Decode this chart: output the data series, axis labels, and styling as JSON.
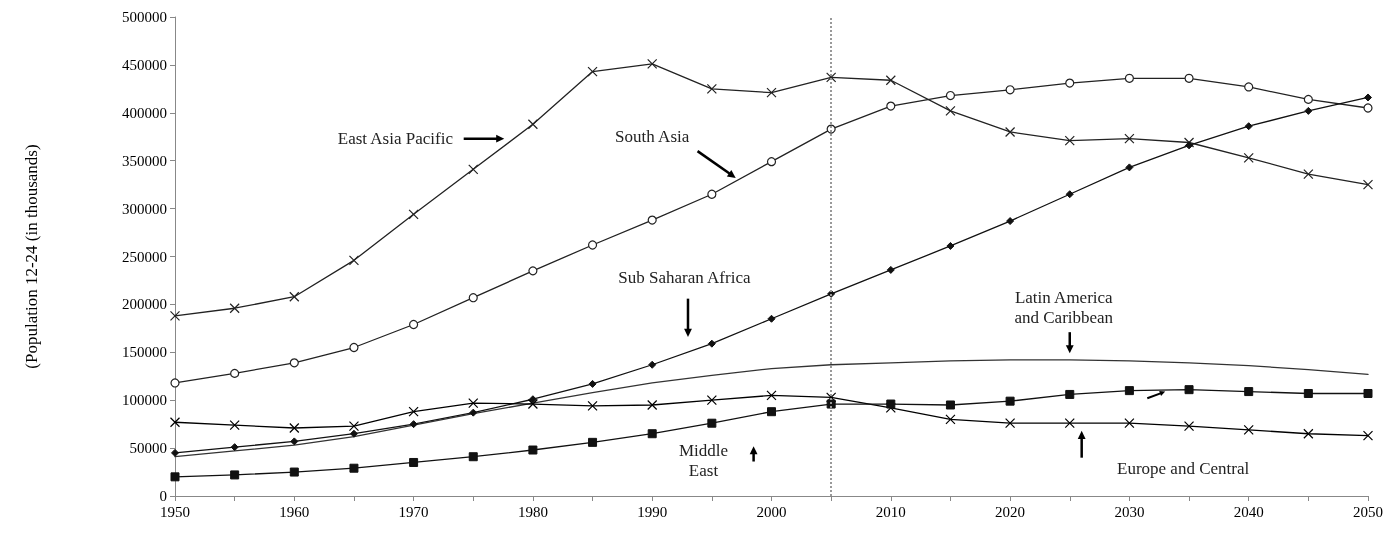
{
  "chart_data": {
    "type": "line",
    "ylabel": "(Population 12-24 (in thousands)",
    "x": [
      1950,
      1955,
      1960,
      1965,
      1970,
      1975,
      1980,
      1985,
      1990,
      1995,
      2000,
      2005,
      2010,
      2015,
      2020,
      2025,
      2030,
      2035,
      2040,
      2045,
      2050
    ],
    "series": [
      {
        "color": "#222222",
        "marker": "cross",
        "values": [
          188000,
          196000,
          208000,
          246000,
          294000,
          341000,
          388000,
          443000,
          451000,
          425000,
          421000,
          437000,
          434000,
          402000,
          380000,
          371000,
          373000,
          369000,
          353000,
          336000,
          325000
        ]
      },
      {
        "color": "#222222",
        "marker": "circle",
        "values": [
          118000,
          128000,
          139000,
          155000,
          179000,
          207000,
          235000,
          262000,
          288000,
          315000,
          349000,
          383000,
          407000,
          418000,
          424000,
          431000,
          436000,
          436000,
          427000,
          414000,
          405000
        ]
      },
      {
        "color": "#111111",
        "marker": "diamond",
        "values": [
          45000,
          51000,
          57000,
          65000,
          75000,
          87000,
          101000,
          117000,
          137000,
          159000,
          185000,
          211000,
          236000,
          261000,
          287000,
          315000,
          343000,
          366000,
          386000,
          402000,
          416000
        ]
      },
      {
        "color": "#333333",
        "marker": "none",
        "values": [
          41000,
          47000,
          53000,
          62000,
          74000,
          86000,
          97000,
          108000,
          118000,
          126000,
          133000,
          137000,
          139000,
          141000,
          142000,
          142000,
          141000,
          139000,
          136000,
          132000,
          127000
        ]
      },
      {
        "color": "#000000",
        "marker": "cross",
        "values": [
          77000,
          74000,
          71000,
          73000,
          88000,
          97000,
          96000,
          94000,
          95000,
          100000,
          105000,
          103000,
          92000,
          80000,
          76000,
          76000,
          76000,
          73000,
          69000,
          65000,
          63000
        ]
      },
      {
        "color": "#111111",
        "marker": "square",
        "values": [
          20000,
          22000,
          25000,
          29000,
          35000,
          41000,
          48000,
          56000,
          65000,
          76000,
          88000,
          96000,
          96000,
          95000,
          99000,
          106000,
          110000,
          111000,
          109000,
          107000,
          107000
        ]
      }
    ],
    "annotations": [
      "East Asia Pacific",
      "South Asia",
      "Sub Saharan Africa",
      "Latin America\nand Caribbean",
      "Europe and Central",
      "Middle\nEast"
    ],
    "xlim": [
      1950,
      2050
    ],
    "xticks": [
      1950,
      {
        "value": 1955,
        "label": null
      },
      1960,
      {
        "value": 1965,
        "label": null
      },
      1970,
      {
        "value": 1975,
        "label": null
      },
      1980,
      {
        "value": 1985,
        "label": null
      },
      1990,
      {
        "value": 1995,
        "label": null
      },
      2000,
      {
        "value": 2005,
        "label": null
      },
      2010,
      {
        "value": 2015,
        "label": null
      },
      2020,
      {
        "value": 2025,
        "label": null
      },
      2030,
      {
        "value": 2035,
        "label": null
      },
      2040,
      {
        "value": 2045,
        "label": null
      },
      2050
    ],
    "ylim": [
      0,
      500000
    ],
    "yticks": [
      0,
      50000,
      100000,
      150000,
      200000,
      250000,
      300000,
      350000,
      400000,
      450000,
      500000
    ],
    "ref_lines": [
      {
        "axis": "x",
        "value": 2005,
        "color": "#999999",
        "line_style": "dotted"
      }
    ],
    "grid": false,
    "legend": false,
    "line_style": "solid"
  }
}
